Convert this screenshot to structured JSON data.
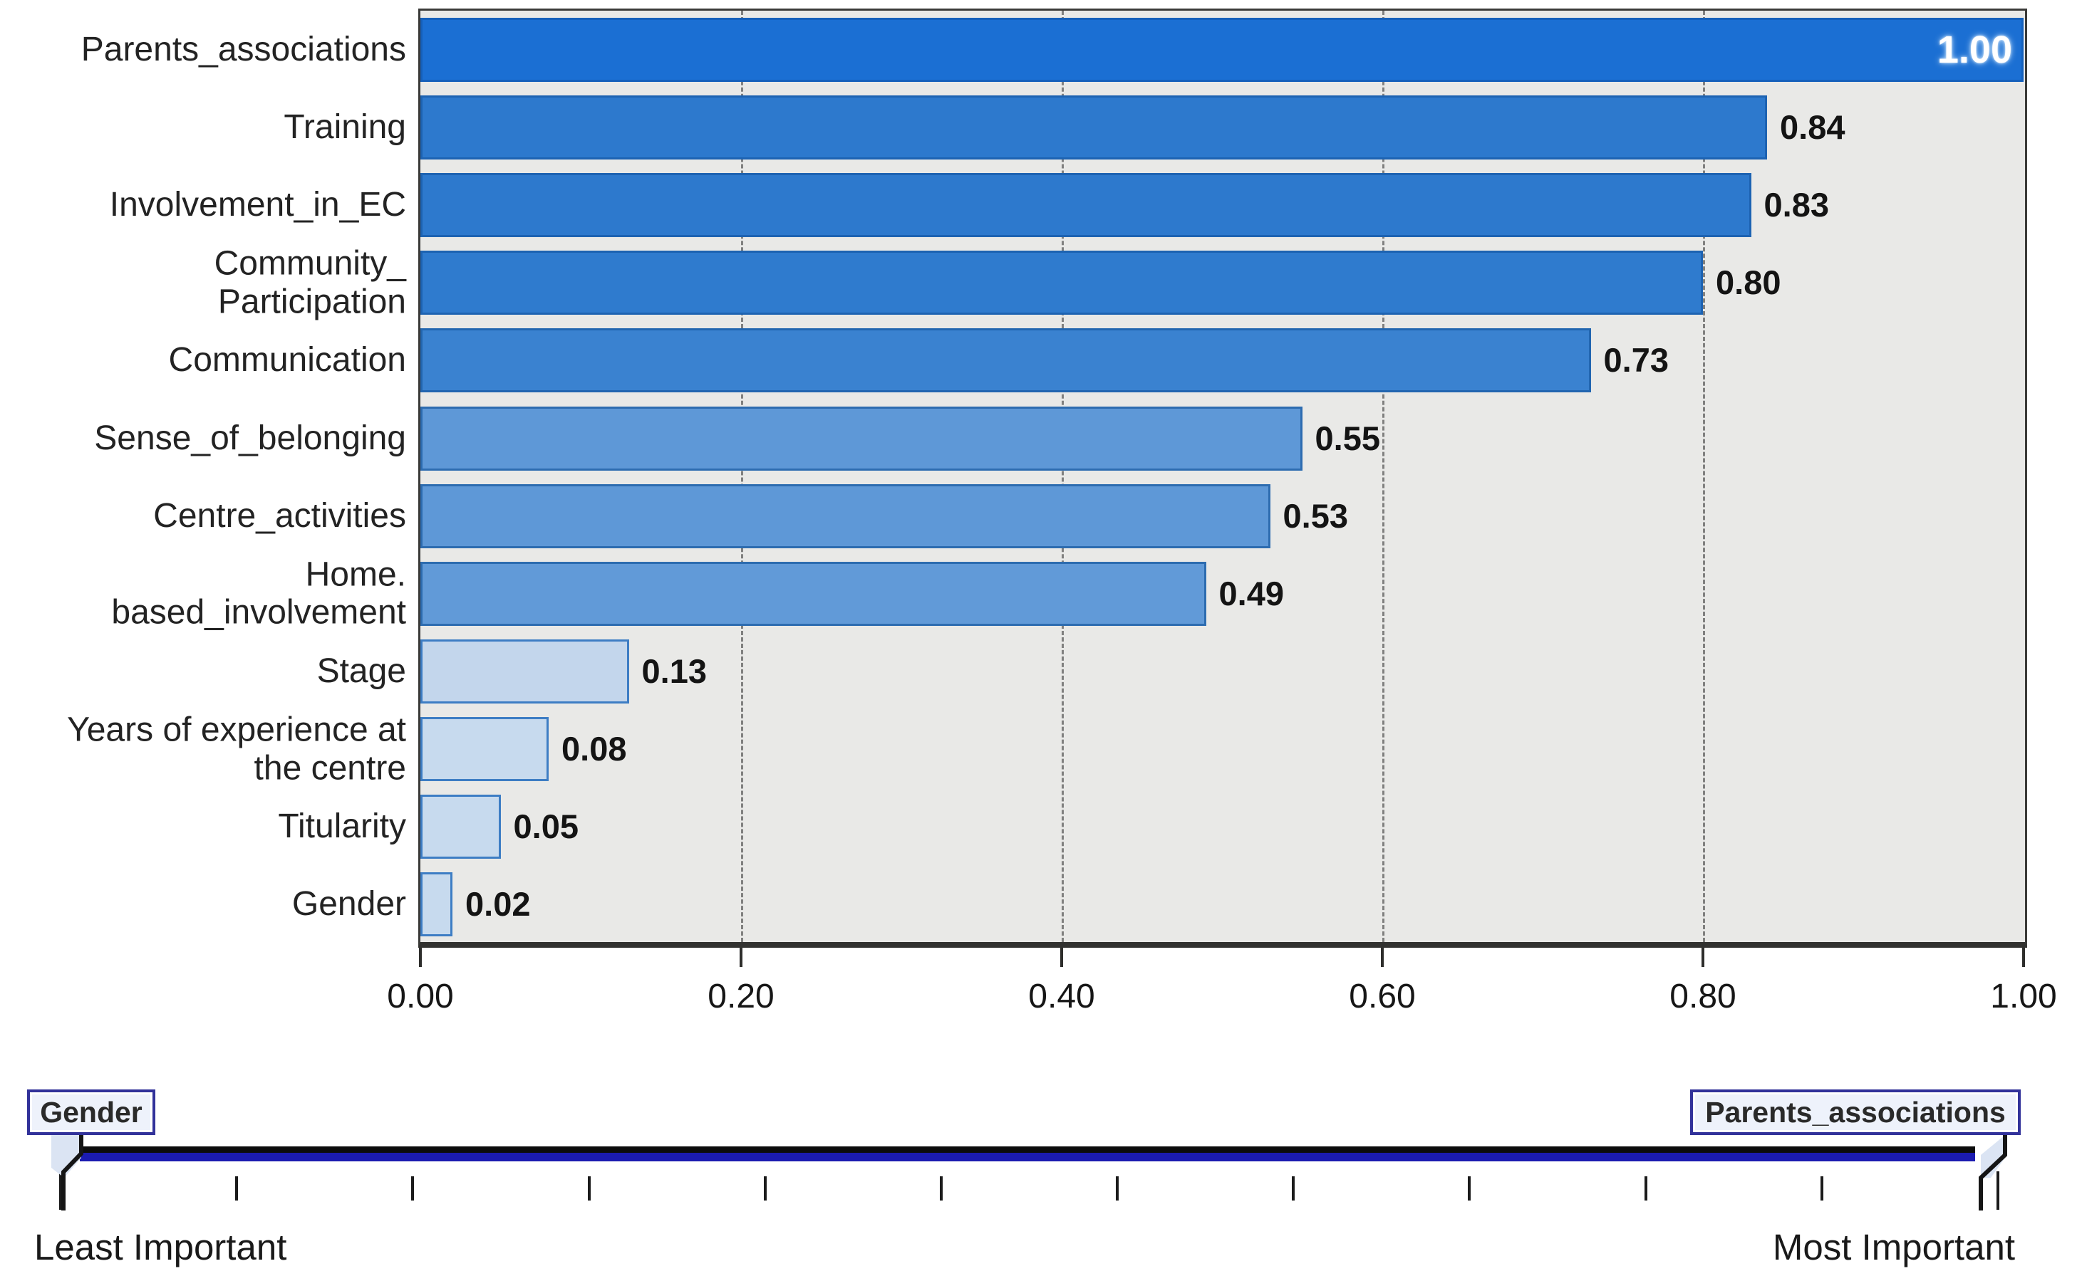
{
  "page": {
    "background": "#ffffff"
  },
  "chart_data": {
    "type": "bar",
    "orientation": "horizontal",
    "title": "",
    "xlabel": "",
    "ylabel": "",
    "xlim": [
      0,
      1
    ],
    "x_ticks": [
      {
        "value": 0.0,
        "label": "0.00"
      },
      {
        "value": 0.2,
        "label": "0.20"
      },
      {
        "value": 0.4,
        "label": "0.40"
      },
      {
        "value": 0.6,
        "label": "0.60"
      },
      {
        "value": 0.8,
        "label": "0.80"
      },
      {
        "value": 1.0,
        "label": "1.00"
      }
    ],
    "gridline_values": [
      0.2,
      0.4,
      0.6,
      0.8
    ],
    "grid": "dashed-vertical",
    "legend": "none",
    "plot_background": "#e9e9e7",
    "items": [
      {
        "label": "Parents_associations",
        "value": 1.0,
        "value_label": "1.00",
        "fill": "#1b6fd3",
        "border": "#1560bb",
        "label_inside": true
      },
      {
        "label": "Training",
        "value": 0.84,
        "value_label": "0.84",
        "fill": "#2d79cd",
        "border": "#1d63b2",
        "label_inside": false
      },
      {
        "label": "Involvement_in_EC",
        "value": 0.83,
        "value_label": "0.83",
        "fill": "#2d79cd",
        "border": "#1d63b2",
        "label_inside": false
      },
      {
        "label": "Community_\nParticipation",
        "value": 0.8,
        "value_label": "0.80",
        "fill": "#2f7bce",
        "border": "#1d63b2",
        "label_inside": false
      },
      {
        "label": "Communication",
        "value": 0.73,
        "value_label": "0.73",
        "fill": "#3a82d0",
        "border": "#2266b0",
        "label_inside": false
      },
      {
        "label": "Sense_of_belonging",
        "value": 0.55,
        "value_label": "0.55",
        "fill": "#5e98d7",
        "border": "#2d6cb0",
        "label_inside": false
      },
      {
        "label": "Centre_activities",
        "value": 0.53,
        "value_label": "0.53",
        "fill": "#5e98d7",
        "border": "#2d6cb0",
        "label_inside": false
      },
      {
        "label": "Home.\nbased_involvement",
        "value": 0.49,
        "value_label": "0.49",
        "fill": "#619ad8",
        "border": "#2d6cb0",
        "label_inside": false
      },
      {
        "label": "Stage",
        "value": 0.13,
        "value_label": "0.13",
        "fill": "#c3d6ec",
        "border": "#3d7dc4",
        "label_inside": false
      },
      {
        "label": "Years of experience at\nthe centre",
        "value": 0.08,
        "value_label": "0.08",
        "fill": "#c7daee",
        "border": "#3d7dc4",
        "label_inside": false
      },
      {
        "label": "Titularity",
        "value": 0.05,
        "value_label": "0.05",
        "fill": "#c7daee",
        "border": "#3d7dc4",
        "label_inside": false
      },
      {
        "label": "Gender",
        "value": 0.02,
        "value_label": "0.02",
        "fill": "#c7daee",
        "border": "#3d7dc4",
        "label_inside": false
      }
    ]
  },
  "slider": {
    "left_handle_label": "Gender",
    "right_handle_label": "Parents_associations",
    "left_end_label": "Least Important",
    "right_end_label": "Most Important",
    "tick_count": 12,
    "track_color_top": "#0c0c0c",
    "track_color_bottom": "#1b1bb0",
    "handle_box_border": "#32329a",
    "handle_box_fill": "#eef2fb"
  }
}
